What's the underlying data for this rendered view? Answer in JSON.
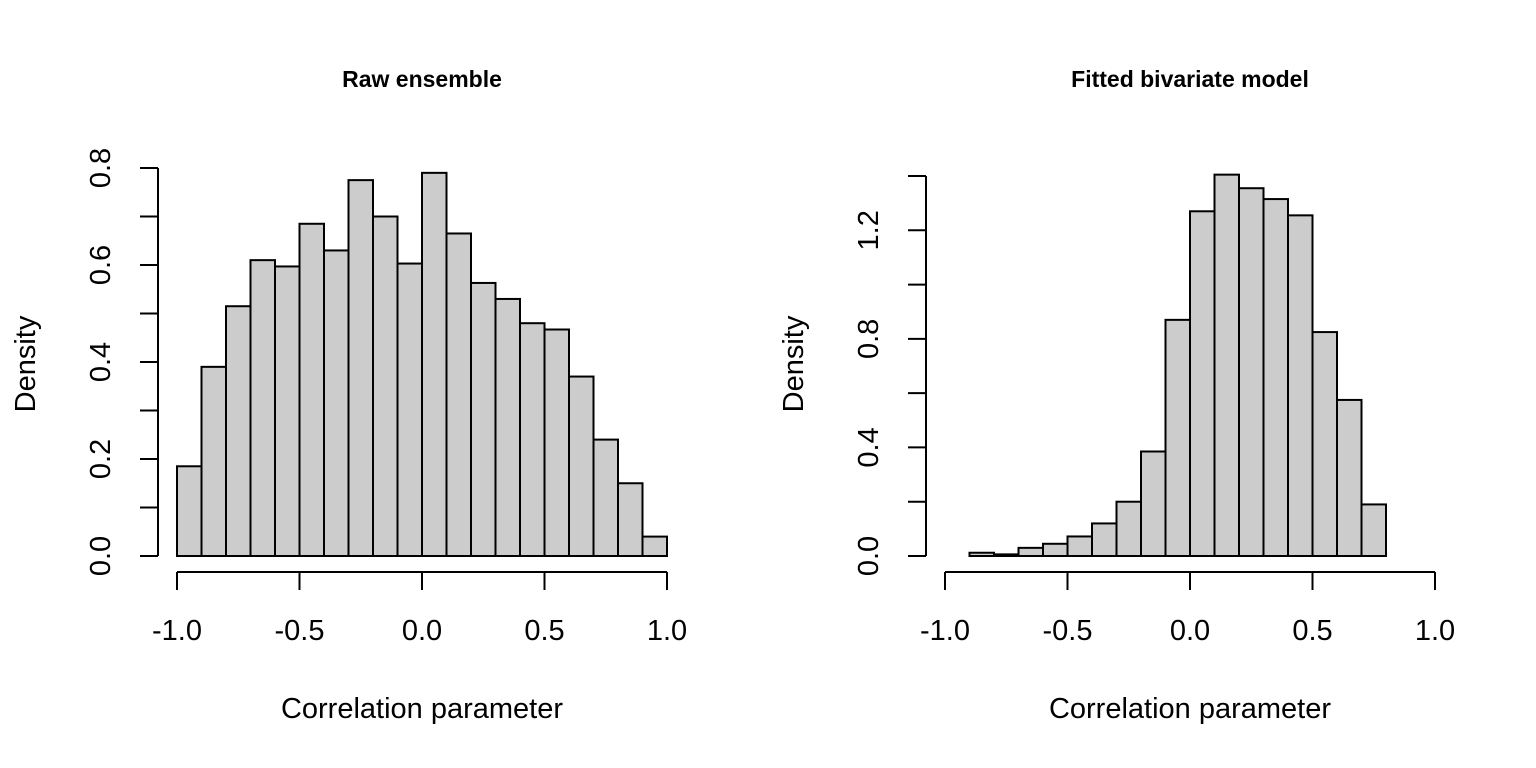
{
  "chart_data": [
    {
      "type": "bar",
      "title": "Raw ensemble",
      "xlabel": "Correlation parameter",
      "ylabel": "Density",
      "bin_edges": [
        -1.0,
        -0.9,
        -0.8,
        -0.7,
        -0.6,
        -0.5,
        -0.4,
        -0.3,
        -0.2,
        -0.1,
        0.0,
        0.1,
        0.2,
        0.3,
        0.4,
        0.5,
        0.6,
        0.7,
        0.8,
        0.9,
        1.0
      ],
      "values": [
        0.185,
        0.39,
        0.515,
        0.61,
        0.597,
        0.685,
        0.63,
        0.775,
        0.7,
        0.603,
        0.79,
        0.665,
        0.563,
        0.53,
        0.48,
        0.467,
        0.37,
        0.24,
        0.15,
        0.04
      ],
      "xlim": [
        -1.0,
        1.0
      ],
      "ylim": [
        0,
        0.8
      ],
      "xticks": [
        -1.0,
        -0.5,
        0.0,
        0.5,
        1.0
      ],
      "xtick_labels": [
        "-1.0",
        "-0.5",
        "0.0",
        "0.5",
        "1.0"
      ],
      "yticks": [
        0,
        0.1,
        0.2,
        0.3,
        0.4,
        0.5,
        0.6,
        0.7,
        0.8
      ],
      "ytick_labels": [
        "0.0",
        "",
        "0.2",
        "",
        "0.4",
        "",
        "0.6",
        "",
        "0.8"
      ],
      "grid": false
    },
    {
      "type": "bar",
      "title": "Fitted bivariate model",
      "xlabel": "Correlation parameter",
      "ylabel": "Density",
      "bin_edges": [
        -0.9,
        -0.8,
        -0.7,
        -0.6,
        -0.5,
        -0.4,
        -0.3,
        -0.2,
        -0.1,
        0.0,
        0.1,
        0.2,
        0.3,
        0.4,
        0.5,
        0.6,
        0.7,
        0.8
      ],
      "values": [
        0.012,
        0.006,
        0.03,
        0.045,
        0.072,
        0.12,
        0.2,
        0.385,
        0.87,
        1.27,
        1.405,
        1.355,
        1.315,
        1.255,
        0.825,
        0.575,
        0.19
      ],
      "xlim": [
        -1.0,
        1.0
      ],
      "ylim": [
        0,
        1.4
      ],
      "xticks": [
        -1.0,
        -0.5,
        0.0,
        0.5,
        1.0
      ],
      "xtick_labels": [
        "-1.0",
        "-0.5",
        "0.0",
        "0.5",
        "1.0"
      ],
      "yticks": [
        0,
        0.2,
        0.4,
        0.6,
        0.8,
        1.0,
        1.2,
        1.4
      ],
      "ytick_labels": [
        "0.0",
        "",
        "0.4",
        "",
        "0.8",
        "",
        "1.2",
        ""
      ],
      "grid": false
    }
  ]
}
